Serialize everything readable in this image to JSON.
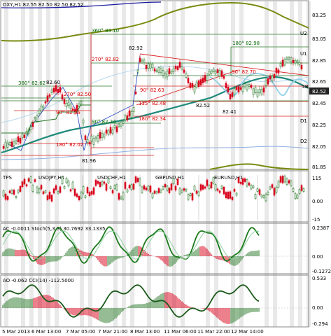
{
  "header": {
    "title": "DXY,H1  82.55 82.50 82.50 82.52"
  },
  "axis": {
    "price_ticks": [
      "83.25",
      "83.05",
      "82.85",
      "82.65",
      "82.45",
      "82.25",
      "82.05",
      "81.85"
    ],
    "current_price": "82.52",
    "tps_ticks": [
      "115",
      "0.00",
      "-15"
    ],
    "ac_ticks": [
      "0.2387",
      "0.00",
      "-0.1272"
    ],
    "ao_ticks": [
      "0.533",
      "0.00",
      "-0.294"
    ],
    "time_ticks": [
      "5 Mar 2013",
      "6 Mar 13:00",
      "7 Mar 05:00",
      "7 Mar 21:00",
      "8 Mar 13:00",
      "11 Mar 06:00",
      "11 Mar 22:00",
      "12 Mar 14:00"
    ]
  },
  "levels": {
    "u2": "U2",
    "u1": "U1",
    "lb": "LB",
    "d1": "D1",
    "d2": "D2"
  },
  "annotations": {
    "high_8mar": "82.92",
    "low_7mar": "81.96",
    "high_6mar": "82.60",
    "low_11mar": "82.52",
    "low_12mar": "82.41",
    "g360_top": "360° 83.10",
    "g270_top": "270° 82.82",
    "g180_right": "180° 82.98",
    "g90_right": "90° 82.70",
    "g360_left": "360° 82.62",
    "g270_left": "270° 82.50",
    "g90_left": "90° 82.36",
    "g180_left": "180° 82.02",
    "g90_mid": "90° 82.24",
    "r90": "90° 82.63",
    "r135": "135° 82.48",
    "r180": "180° 82.34"
  },
  "tps_panel": {
    "label": "TPS",
    "pairs": [
      "USDJPY,H1",
      "USDCHF,H1",
      "GBPUSD,H1",
      "EURUSD,H1"
    ]
  },
  "ac_panel": {
    "label": "AC -0.0011  Stoch(5,3,3) 30.7692 33.1335"
  },
  "ao_panel": {
    "label": "AO -0.062  CCI(14) -112.5000"
  },
  "colors": {
    "bull": "#2b7a2b",
    "bear": "#d8001a",
    "ema": "#1f8a7a",
    "band": "#7a8a10",
    "bb": "#8fd0e8",
    "channel": "#2a7a2a",
    "fib": "#d82020"
  }
}
